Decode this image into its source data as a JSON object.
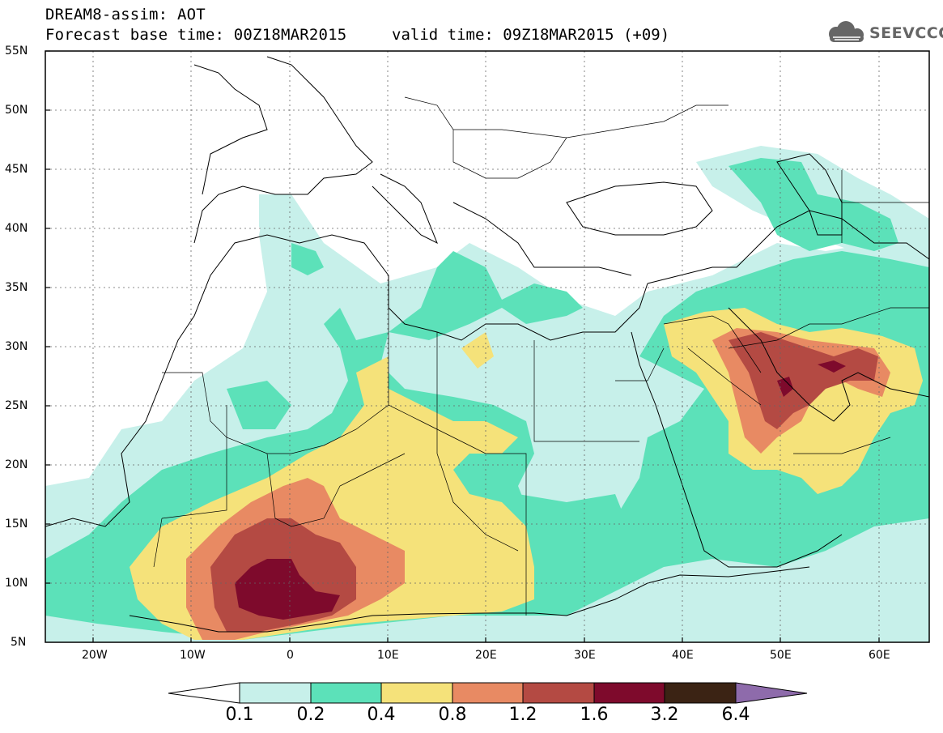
{
  "header": {
    "title": "DREAM8-assim: AOT",
    "base_time": "Forecast base time: 00Z18MAR2015",
    "valid_time": "valid time: 09Z18MAR2015 (+09)"
  },
  "logo": {
    "text": "SEEVCCC",
    "icon": "cloud-logo-icon"
  },
  "map": {
    "lat_ticks": [
      "55N",
      "50N",
      "45N",
      "40N",
      "35N",
      "30N",
      "25N",
      "20N",
      "15N",
      "10N",
      "5N"
    ],
    "lon_ticks": [
      "20W",
      "10W",
      "0",
      "10E",
      "20E",
      "30E",
      "40E",
      "50E",
      "60E"
    ],
    "region": "North Africa, Europe, Middle East"
  },
  "colorbar": {
    "labels": [
      "0.1",
      "0.2",
      "0.4",
      "0.8",
      "1.2",
      "1.6",
      "3.2",
      "6.4"
    ],
    "colors": [
      "#ffffff",
      "#c7f0ea",
      "#5ce1b9",
      "#f5e27a",
      "#e88a63",
      "#b44a43",
      "#7e0a2c",
      "#3b2314",
      "#8e6bab"
    ]
  }
}
